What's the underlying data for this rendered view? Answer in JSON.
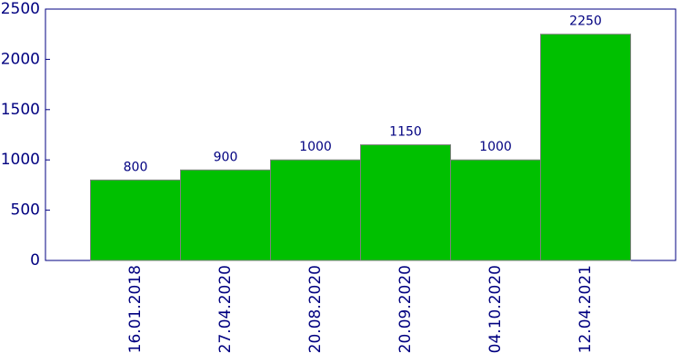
{
  "chart_data": {
    "type": "bar",
    "categories": [
      "16.01.2018",
      "27.04.2020",
      "20.08.2020",
      "20.09.2020",
      "04.10.2020",
      "12.04.2021"
    ],
    "values": [
      800,
      900,
      1000,
      1150,
      1000,
      2250
    ],
    "color": "#00c000",
    "ylim": [
      0,
      2500
    ],
    "yticks": [
      0,
      500,
      1000,
      1500,
      2000,
      2500
    ]
  }
}
